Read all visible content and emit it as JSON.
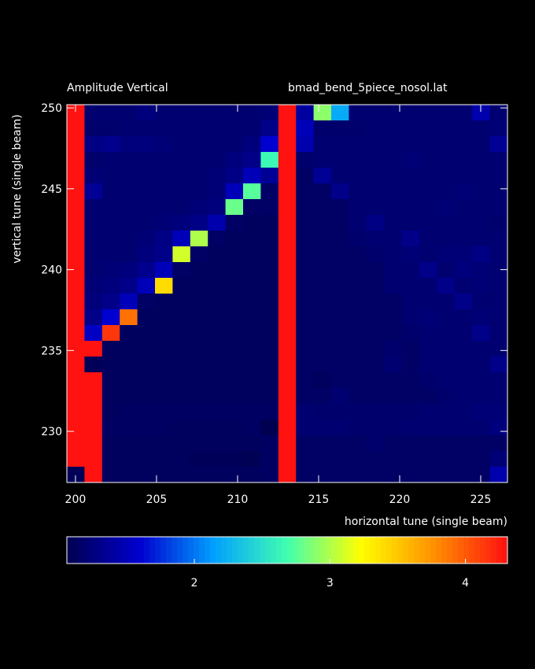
{
  "chart_data": {
    "type": "heatmap",
    "title": "Amplitude Vertical",
    "subtitle": "bmad_bend_5piece_nosol.lat",
    "x_label": "horizontal tune (single beam)",
    "y_label": "vertical tune (single beam)",
    "xlim": [
      199.47,
      226.65
    ],
    "ylim": [
      226.84,
      250.2
    ],
    "xticks": [
      200,
      205,
      210,
      215,
      220,
      225
    ],
    "yticks": [
      230,
      235,
      240,
      245,
      250
    ],
    "clim": [
      1.06,
      4.31
    ],
    "cticks": [
      2,
      3,
      4
    ],
    "colormap": [
      "#000050",
      "#0000d0",
      "#00a0ff",
      "#40ffb0",
      "#ffff00",
      "#ff9000",
      "#ff1010"
    ],
    "z": [
      [
        4.3,
        1.2,
        1.2,
        1.2,
        1.25,
        1.2,
        1.2,
        1.2,
        1.2,
        1.2,
        1.2,
        1.22,
        4.3,
        1.4,
        2.9,
        2.2,
        1.2,
        1.2,
        1.2,
        1.2,
        1.2,
        1.2,
        1.2,
        1.45,
        1.2
      ],
      [
        4.3,
        1.18,
        1.18,
        1.2,
        1.2,
        1.2,
        1.2,
        1.2,
        1.2,
        1.2,
        1.2,
        1.3,
        4.3,
        1.5,
        1.18,
        1.18,
        1.18,
        1.2,
        1.2,
        1.2,
        1.2,
        1.2,
        1.2,
        1.2,
        1.22
      ],
      [
        4.3,
        1.28,
        1.32,
        1.25,
        1.25,
        1.22,
        1.2,
        1.2,
        1.2,
        1.2,
        1.25,
        1.6,
        4.3,
        1.45,
        1.2,
        1.2,
        1.2,
        1.2,
        1.2,
        1.2,
        1.2,
        1.2,
        1.2,
        1.2,
        1.35
      ],
      [
        4.3,
        1.18,
        1.2,
        1.2,
        1.2,
        1.2,
        1.2,
        1.2,
        1.2,
        1.25,
        1.3,
        2.65,
        4.3,
        1.18,
        1.2,
        1.2,
        1.2,
        1.2,
        1.2,
        1.22,
        1.2,
        1.2,
        1.2,
        1.2,
        1.2
      ],
      [
        4.3,
        1.22,
        1.2,
        1.2,
        1.2,
        1.2,
        1.2,
        1.2,
        1.22,
        1.28,
        1.5,
        1.35,
        4.3,
        1.15,
        1.35,
        1.2,
        1.2,
        1.2,
        1.2,
        1.2,
        1.2,
        1.2,
        1.2,
        1.2,
        1.2
      ],
      [
        4.3,
        1.35,
        1.2,
        1.2,
        1.2,
        1.2,
        1.2,
        1.2,
        1.22,
        1.5,
        2.75,
        1.15,
        4.3,
        1.15,
        1.15,
        1.3,
        1.2,
        1.2,
        1.2,
        1.2,
        1.2,
        1.2,
        1.22,
        1.2,
        1.2
      ],
      [
        4.3,
        1.2,
        1.2,
        1.2,
        1.2,
        1.2,
        1.2,
        1.22,
        1.25,
        2.8,
        1.15,
        1.15,
        4.3,
        1.15,
        1.15,
        1.15,
        1.2,
        1.2,
        1.2,
        1.2,
        1.2,
        1.22,
        1.2,
        1.2,
        1.2
      ],
      [
        4.3,
        1.2,
        1.2,
        1.2,
        1.2,
        1.22,
        1.25,
        1.28,
        1.45,
        1.15,
        1.12,
        1.12,
        4.3,
        1.15,
        1.15,
        1.15,
        1.2,
        1.28,
        1.2,
        1.2,
        1.2,
        1.2,
        1.2,
        1.2,
        1.18
      ],
      [
        4.3,
        1.2,
        1.2,
        1.2,
        1.22,
        1.28,
        1.5,
        3.0,
        1.15,
        1.12,
        1.12,
        1.12,
        4.3,
        1.15,
        1.15,
        1.15,
        1.18,
        1.2,
        1.2,
        1.3,
        1.2,
        1.2,
        1.2,
        1.2,
        1.2
      ],
      [
        4.3,
        1.2,
        1.2,
        1.2,
        1.25,
        1.3,
        3.1,
        1.15,
        1.12,
        1.12,
        1.12,
        1.12,
        4.3,
        1.15,
        1.15,
        1.15,
        1.15,
        1.18,
        1.2,
        1.22,
        1.2,
        1.22,
        1.22,
        1.28,
        1.2
      ],
      [
        4.3,
        1.2,
        1.22,
        1.25,
        1.32,
        1.5,
        1.15,
        1.12,
        1.12,
        1.12,
        1.12,
        1.12,
        4.3,
        1.15,
        1.15,
        1.15,
        1.15,
        1.15,
        1.2,
        1.2,
        1.3,
        1.2,
        1.25,
        1.22,
        1.2
      ],
      [
        4.3,
        1.22,
        1.25,
        1.3,
        1.5,
        3.4,
        1.12,
        1.12,
        1.12,
        1.12,
        1.12,
        1.12,
        4.3,
        1.15,
        1.15,
        1.15,
        1.15,
        1.15,
        1.2,
        1.2,
        1.2,
        1.3,
        1.2,
        1.22,
        1.2
      ],
      [
        4.3,
        1.25,
        1.3,
        1.5,
        1.15,
        1.12,
        1.12,
        1.12,
        1.12,
        1.12,
        1.12,
        1.12,
        4.3,
        1.15,
        1.15,
        1.15,
        1.15,
        1.15,
        1.15,
        1.2,
        1.2,
        1.2,
        1.3,
        1.2,
        1.2
      ],
      [
        4.3,
        1.3,
        1.6,
        3.9,
        1.12,
        1.12,
        1.12,
        1.12,
        1.12,
        1.12,
        1.12,
        1.12,
        4.3,
        1.15,
        1.15,
        1.15,
        1.15,
        1.15,
        1.15,
        1.2,
        1.22,
        1.2,
        1.2,
        1.22,
        1.2
      ],
      [
        4.3,
        1.55,
        4.15,
        1.12,
        1.12,
        1.12,
        1.12,
        1.12,
        1.12,
        1.12,
        1.12,
        1.12,
        4.3,
        1.15,
        1.15,
        1.15,
        1.15,
        1.15,
        1.15,
        1.18,
        1.2,
        1.2,
        1.2,
        1.3,
        1.2
      ],
      [
        4.3,
        4.3,
        1.12,
        1.12,
        1.12,
        1.12,
        1.12,
        1.12,
        1.12,
        1.12,
        1.12,
        1.12,
        4.3,
        1.15,
        1.15,
        1.15,
        1.15,
        1.15,
        1.18,
        1.15,
        1.2,
        1.2,
        1.2,
        1.2,
        1.2
      ],
      [
        4.3,
        1.1,
        1.12,
        1.12,
        1.12,
        1.12,
        1.12,
        1.12,
        1.12,
        1.12,
        1.12,
        1.12,
        4.3,
        1.15,
        1.15,
        1.15,
        1.15,
        1.15,
        1.2,
        1.15,
        1.2,
        1.2,
        1.2,
        1.2,
        1.3
      ],
      [
        4.3,
        4.3,
        1.12,
        1.12,
        1.12,
        1.12,
        1.12,
        1.12,
        1.12,
        1.12,
        1.12,
        1.12,
        4.3,
        1.15,
        1.12,
        1.15,
        1.15,
        1.15,
        1.15,
        1.15,
        1.18,
        1.2,
        1.2,
        1.2,
        1.2
      ],
      [
        4.3,
        4.3,
        1.12,
        1.12,
        1.12,
        1.12,
        1.12,
        1.12,
        1.12,
        1.12,
        1.12,
        1.12,
        4.3,
        1.15,
        1.15,
        1.2,
        1.15,
        1.15,
        1.15,
        1.15,
        1.15,
        1.18,
        1.2,
        1.2,
        1.2
      ],
      [
        4.3,
        4.3,
        1.12,
        1.14,
        1.14,
        1.14,
        1.14,
        1.14,
        1.14,
        1.14,
        1.14,
        1.14,
        4.3,
        1.2,
        1.18,
        1.18,
        1.18,
        1.18,
        1.18,
        1.18,
        1.2,
        1.2,
        1.2,
        1.22,
        1.22
      ],
      [
        4.3,
        4.3,
        1.14,
        1.14,
        1.14,
        1.14,
        1.12,
        1.12,
        1.12,
        1.12,
        1.14,
        1.05,
        4.3,
        1.2,
        1.2,
        1.2,
        1.18,
        1.18,
        1.18,
        1.2,
        1.2,
        1.2,
        1.2,
        1.2,
        1.25
      ],
      [
        4.3,
        4.3,
        1.12,
        1.12,
        1.12,
        1.12,
        1.12,
        1.12,
        1.12,
        1.12,
        1.12,
        1.14,
        4.3,
        1.15,
        1.15,
        1.15,
        1.15,
        1.18,
        1.15,
        1.15,
        1.15,
        1.15,
        1.15,
        1.15,
        1.15
      ],
      [
        4.3,
        4.3,
        1.12,
        1.12,
        1.12,
        1.12,
        1.12,
        1.1,
        1.1,
        1.1,
        1.08,
        1.14,
        4.3,
        1.15,
        1.15,
        1.15,
        1.15,
        1.15,
        1.15,
        1.15,
        1.15,
        1.15,
        1.15,
        1.15,
        1.22
      ],
      [
        1.1,
        4.3,
        1.12,
        1.12,
        1.12,
        1.12,
        1.12,
        1.12,
        1.12,
        1.12,
        1.12,
        1.14,
        4.3,
        1.15,
        1.15,
        1.15,
        1.15,
        1.15,
        1.15,
        1.15,
        1.15,
        1.15,
        1.15,
        1.15,
        1.45
      ]
    ]
  }
}
